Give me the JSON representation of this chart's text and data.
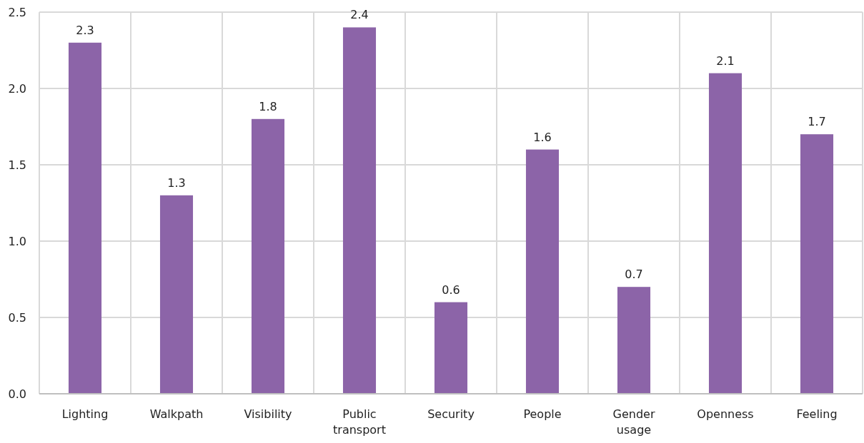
{
  "chart_data": {
    "type": "bar",
    "categories": [
      "Lighting",
      "Walkpath",
      "Visibility",
      "Public transport",
      "Security",
      "People",
      "Gender usage",
      "Openness",
      "Feeling"
    ],
    "values": [
      2.3,
      1.3,
      1.8,
      2.4,
      0.6,
      1.6,
      0.7,
      2.1,
      1.7
    ],
    "color": "#8c64a8",
    "ylim": [
      0,
      2.5
    ],
    "yticks": [
      {
        "value": 0,
        "label": "0.0"
      },
      {
        "value": 0.5,
        "label": "0.5"
      },
      {
        "value": 1,
        "label": "1.0"
      },
      {
        "value": 1.5,
        "label": "1.5"
      },
      {
        "value": 2,
        "label": "2.0"
      },
      {
        "value": 2.5,
        "label": "2.5"
      }
    ],
    "grid": true,
    "data_labels": true
  }
}
